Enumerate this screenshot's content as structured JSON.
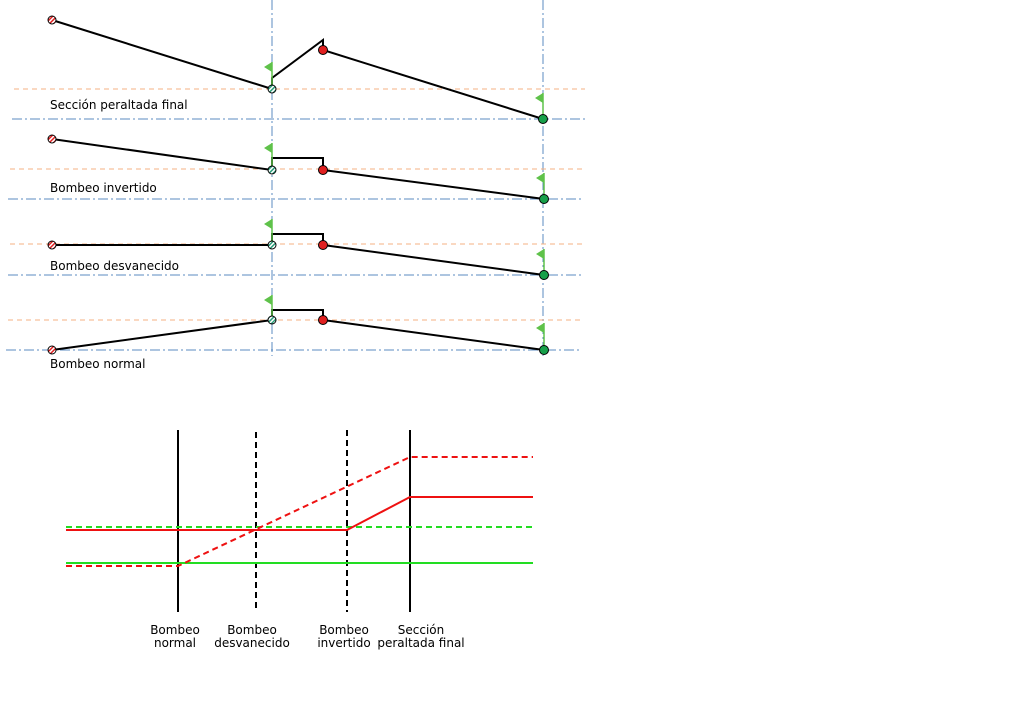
{
  "sections": [
    {
      "label": "Sección peraltada final"
    },
    {
      "label": "Bombeo invertido"
    },
    {
      "label": "Bombeo desvanecido"
    },
    {
      "label": "Bombeo normal"
    }
  ],
  "transition_labels": [
    [
      "Bombeo",
      "normal"
    ],
    [
      "Bombeo",
      "desvanecido"
    ],
    [
      "Bombeo",
      "invertido"
    ],
    [
      "Sección",
      "peraltada final"
    ]
  ]
}
